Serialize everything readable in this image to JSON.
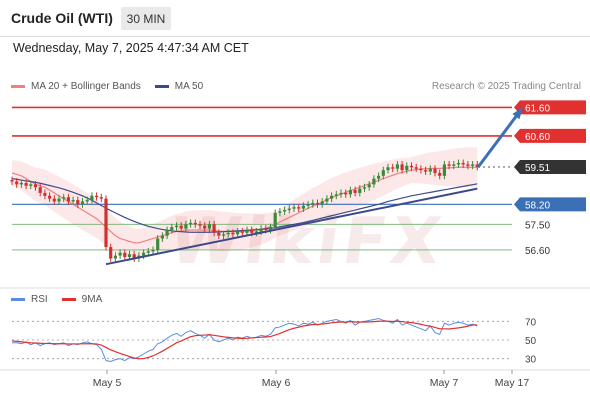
{
  "header": {
    "instrument": "Crude Oil (WTI)",
    "timeframe": "30 MIN",
    "timestamp": "Wednesday, May 7, 2025 4:47:34 AM CET"
  },
  "legend": {
    "ma20_label": "MA 20 + Bollinger Bands",
    "ma50_label": "MA 50",
    "copyright": "Research © 2025 Trading Central"
  },
  "rsi_legend": {
    "rsi_label": "RSI",
    "ma_label": "9MA"
  },
  "watermark": "WikiFX",
  "colors": {
    "resistance": "#e03030",
    "support": "#3b6fb6",
    "ma20": "#f08080",
    "ma50": "#3d4a8a",
    "bull": "#3a8a3a",
    "bear": "#d03030",
    "rsi": "#5b8de0",
    "rsi_ma": "#e03030",
    "current_price": "#333333",
    "secondary_support": "#6fb06f"
  },
  "chart_data": [
    {
      "type": "candlestick",
      "x_labels": [
        "May 5",
        "May 6",
        "May 7",
        "May 17"
      ],
      "ylim": [
        55.3,
        62.0
      ],
      "levels": [
        {
          "label": "61.60",
          "value": 61.6,
          "kind": "resistance"
        },
        {
          "label": "60.60",
          "value": 60.6,
          "kind": "resistance"
        },
        {
          "label": "59.51",
          "value": 59.51,
          "kind": "current"
        },
        {
          "label": "58.20",
          "value": 58.2,
          "kind": "pivot"
        },
        {
          "label": "57.50",
          "value": 57.5,
          "kind": "support"
        },
        {
          "label": "56.60",
          "value": 56.6,
          "kind": "support"
        }
      ],
      "closes": [
        59.0,
        58.9,
        58.95,
        58.85,
        58.9,
        58.8,
        58.6,
        58.5,
        58.4,
        58.3,
        58.4,
        58.45,
        58.3,
        58.35,
        58.2,
        58.3,
        58.35,
        58.5,
        58.45,
        58.4,
        56.7,
        56.3,
        56.4,
        56.5,
        56.35,
        56.45,
        56.3,
        56.4,
        56.5,
        56.55,
        56.6,
        57.0,
        57.1,
        57.3,
        57.4,
        57.45,
        57.35,
        57.5,
        57.55,
        57.5,
        57.45,
        57.35,
        57.5,
        57.2,
        57.1,
        57.15,
        57.2,
        57.15,
        57.25,
        57.2,
        57.3,
        57.2,
        57.25,
        57.35,
        57.3,
        57.4,
        57.9,
        57.95,
        58.0,
        58.05,
        58.1,
        58.05,
        58.15,
        58.2,
        58.25,
        58.2,
        58.3,
        58.4,
        58.5,
        58.55,
        58.6,
        58.55,
        58.7,
        58.6,
        58.75,
        58.8,
        58.9,
        59.1,
        59.2,
        59.4,
        59.5,
        59.45,
        59.6,
        59.4,
        59.55,
        59.5,
        59.45,
        59.4,
        59.35,
        59.45,
        59.3,
        59.2,
        59.6,
        59.55,
        59.6,
        59.65,
        59.6,
        59.55,
        59.6,
        59.51
      ],
      "ma20": [
        59.3,
        59.25,
        59.2,
        59.1,
        59.0,
        58.9,
        58.85,
        58.8,
        58.7,
        58.6,
        58.5,
        58.4,
        58.3,
        58.2,
        58.1,
        58.0,
        57.9,
        57.8,
        57.7,
        57.55,
        57.4,
        57.25,
        57.1,
        57.0,
        56.95,
        56.9,
        56.85,
        56.85,
        56.9,
        56.95,
        57.0,
        57.05,
        57.1,
        57.15,
        57.2,
        57.25,
        57.25,
        57.3,
        57.3,
        57.3,
        57.3,
        57.3,
        57.3,
        57.28,
        57.26,
        57.25,
        57.25,
        57.24,
        57.24,
        57.25,
        57.26,
        57.28,
        57.3,
        57.33,
        57.37,
        57.42,
        57.5,
        57.58,
        57.66,
        57.74,
        57.82,
        57.9,
        57.98,
        58.06,
        58.14,
        58.2,
        58.28,
        58.36,
        58.44,
        58.5,
        58.56,
        58.62,
        58.68,
        58.74,
        58.8,
        58.86,
        58.92,
        58.98,
        59.04,
        59.1,
        59.16,
        59.22,
        59.28,
        59.32,
        59.36,
        59.4,
        59.42,
        59.44,
        59.45,
        59.46,
        59.46,
        59.46,
        59.47,
        59.48,
        59.49,
        59.5,
        59.5,
        59.5,
        59.5,
        59.5
      ],
      "ma50": [
        59.1,
        59.08,
        59.05,
        59.02,
        59.0,
        58.97,
        58.94,
        58.9,
        58.86,
        58.82,
        58.78,
        58.73,
        58.68,
        58.62,
        58.56,
        58.5,
        58.42,
        58.34,
        58.25,
        58.16,
        58.07,
        57.98,
        57.9,
        57.82,
        57.74,
        57.67,
        57.6,
        57.54,
        57.48,
        57.43,
        57.39,
        57.35,
        57.32,
        57.29,
        57.27,
        57.25,
        57.24,
        57.23,
        57.22,
        57.22,
        57.22,
        57.22,
        57.22,
        57.23,
        57.23,
        57.24,
        57.25,
        57.26,
        57.27,
        57.28,
        57.29,
        57.3,
        57.31,
        57.32,
        57.34,
        57.36,
        57.38,
        57.41,
        57.44,
        57.47,
        57.5,
        57.53,
        57.56,
        57.6,
        57.64,
        57.68,
        57.72,
        57.76,
        57.8,
        57.84,
        57.88,
        57.92,
        57.96,
        58.0,
        58.04,
        58.08,
        58.12,
        58.16,
        58.2,
        58.25,
        58.3,
        58.34,
        58.38,
        58.42,
        58.46,
        58.5,
        58.53,
        58.56,
        58.59,
        58.62,
        58.65,
        58.68,
        58.71,
        58.74,
        58.77,
        58.8,
        58.83,
        58.86,
        58.89,
        58.92
      ],
      "trendline": [
        {
          "x": 20,
          "y": 56.1
        },
        {
          "x": 99,
          "y": 58.75
        }
      ],
      "projection": [
        {
          "x": 100,
          "y": 59.5
        },
        {
          "x": 109,
          "y": 61.6
        }
      ]
    },
    {
      "type": "line",
      "name": "RSI",
      "ylim": [
        20,
        80
      ],
      "y_ticks": [
        70,
        50,
        30
      ],
      "rsi": [
        47,
        47,
        46,
        48,
        45,
        47,
        44,
        46,
        47,
        45,
        46,
        47,
        44,
        46,
        45,
        47,
        48,
        46,
        45,
        40,
        28,
        27,
        29,
        30,
        28,
        31,
        30,
        32,
        35,
        38,
        40,
        46,
        48,
        52,
        55,
        57,
        54,
        58,
        60,
        57,
        55,
        52,
        56,
        50,
        48,
        50,
        52,
        50,
        53,
        52,
        54,
        52,
        53,
        55,
        54,
        56,
        63,
        64,
        66,
        68,
        67,
        65,
        68,
        67,
        69,
        66,
        68,
        70,
        71,
        72,
        70,
        68,
        71,
        66,
        69,
        70,
        71,
        72,
        73,
        71,
        70,
        68,
        72,
        66,
        68,
        66,
        64,
        62,
        60,
        65,
        58,
        56,
        68,
        66,
        68,
        69,
        68,
        66,
        67,
        65
      ],
      "rsi_ma": [
        49,
        48.5,
        48,
        47.5,
        47,
        46.8,
        46.5,
        46.3,
        46.2,
        46,
        46,
        45.9,
        45.8,
        45.8,
        45.8,
        45.9,
        46,
        46,
        45.8,
        44.6,
        42,
        39.5,
        37.5,
        35.6,
        34,
        32.3,
        30.8,
        29.9,
        30.1,
        31.3,
        33,
        35.4,
        38,
        41,
        44,
        47,
        49,
        51.3,
        53.5,
        54.6,
        55,
        55.3,
        55.6,
        55,
        54.2,
        53.4,
        52.8,
        52.3,
        52,
        51.6,
        51.8,
        52.2,
        52.6,
        53,
        53.2,
        53.7,
        55.3,
        57,
        59,
        61,
        62.6,
        63.7,
        65,
        65.8,
        66.6,
        66.7,
        67.1,
        67.7,
        68.4,
        69,
        69.2,
        69.3,
        69.6,
        69.3,
        69.3,
        69.3,
        69.4,
        69.7,
        70.1,
        70.2,
        70.1,
        69.8,
        70.2,
        69.6,
        69.1,
        68.7,
        67.8,
        66.9,
        65.6,
        64.9,
        63.5,
        62,
        62,
        61.8,
        62.4,
        63,
        63.8,
        64.8,
        66,
        66.2
      ]
    }
  ]
}
